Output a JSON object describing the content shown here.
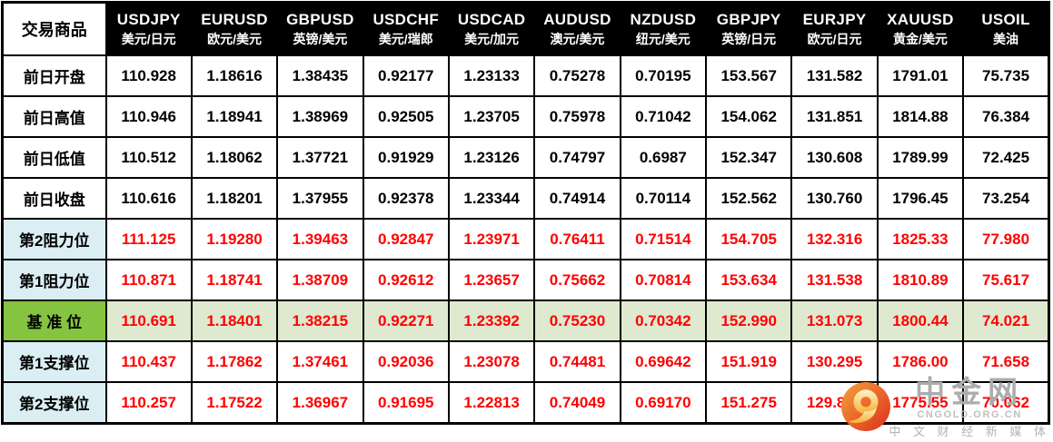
{
  "watermark": {
    "brand": "中金网",
    "domain": "CNGOLD.ORG.CN",
    "tagline": "中 文 财 经 新 媒 体"
  },
  "colors": {
    "value_red": "#FF0000",
    "header_bg": "#000000",
    "label_blue": "#DAEEF3",
    "pivot_label_green": "#84C441",
    "pivot_row_green": "#DFE9D0"
  },
  "chart_data": {
    "type": "table",
    "corner_label": "交易商品",
    "column_headers": [
      {
        "code": "USDJPY",
        "name": "美元/日元"
      },
      {
        "code": "EURUSD",
        "name": "欧元/美元"
      },
      {
        "code": "GBPUSD",
        "name": "英镑/美元"
      },
      {
        "code": "USDCHF",
        "name": "美元/瑞郎"
      },
      {
        "code": "USDCAD",
        "name": "美元/加元"
      },
      {
        "code": "AUDUSD",
        "name": "澳元/美元"
      },
      {
        "code": "NZDUSD",
        "name": "纽元/美元"
      },
      {
        "code": "GBPJPY",
        "name": "英镑/日元"
      },
      {
        "code": "EURJPY",
        "name": "欧元/日元"
      },
      {
        "code": "XAUUSD",
        "name": "黄金/美元"
      },
      {
        "code": "USOIL",
        "name": "美油"
      }
    ],
    "rows": [
      {
        "label": "前日开盘",
        "style": "prev",
        "values": [
          "110.928",
          "1.18616",
          "1.38435",
          "0.92177",
          "1.23133",
          "0.75278",
          "0.70195",
          "153.567",
          "131.582",
          "1791.01",
          "75.735"
        ]
      },
      {
        "label": "前日高值",
        "style": "prev",
        "values": [
          "110.946",
          "1.18941",
          "1.38969",
          "0.92505",
          "1.23705",
          "0.75978",
          "0.71042",
          "154.062",
          "131.851",
          "1814.88",
          "76.384"
        ]
      },
      {
        "label": "前日低值",
        "style": "prev",
        "values": [
          "110.512",
          "1.18062",
          "1.37721",
          "0.91929",
          "1.23126",
          "0.74797",
          "0.6987",
          "152.347",
          "130.608",
          "1789.99",
          "72.425"
        ]
      },
      {
        "label": "前日收盘",
        "style": "prev",
        "values": [
          "110.616",
          "1.18201",
          "1.37955",
          "0.92378",
          "1.23344",
          "0.74914",
          "0.70114",
          "152.562",
          "130.760",
          "1796.45",
          "73.254"
        ]
      },
      {
        "label": "第2阻力位",
        "style": "level",
        "values": [
          "111.125",
          "1.19280",
          "1.39463",
          "0.92847",
          "1.23971",
          "0.76411",
          "0.71514",
          "154.705",
          "132.316",
          "1825.33",
          "77.980"
        ]
      },
      {
        "label": "第1阻力位",
        "style": "level",
        "values": [
          "110.871",
          "1.18741",
          "1.38709",
          "0.92612",
          "1.23657",
          "0.75662",
          "0.70814",
          "153.634",
          "131.538",
          "1810.89",
          "75.617"
        ]
      },
      {
        "label": "基 准 位",
        "style": "pivot",
        "values": [
          "110.691",
          "1.18401",
          "1.38215",
          "0.92271",
          "1.23392",
          "0.75230",
          "0.70342",
          "152.990",
          "131.073",
          "1800.44",
          "74.021"
        ]
      },
      {
        "label": "第1支撑位",
        "style": "level",
        "values": [
          "110.437",
          "1.17862",
          "1.37461",
          "0.92036",
          "1.23078",
          "0.74481",
          "0.69642",
          "151.919",
          "130.295",
          "1786.00",
          "71.658"
        ]
      },
      {
        "label": "第2支撑位",
        "style": "level",
        "values": [
          "110.257",
          "1.17522",
          "1.36967",
          "0.91695",
          "1.22813",
          "0.74049",
          "0.69170",
          "151.275",
          "129.830",
          "1775.55",
          "70.062"
        ]
      }
    ]
  }
}
